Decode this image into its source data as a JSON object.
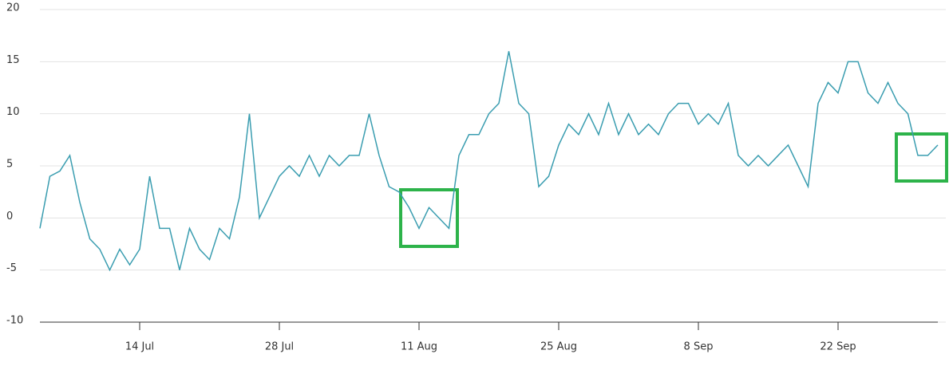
{
  "chart_data": {
    "type": "line",
    "x": [
      "4 Jul",
      "5 Jul",
      "6 Jul",
      "7 Jul",
      "8 Jul",
      "9 Jul",
      "10 Jul",
      "11 Jul",
      "12 Jul",
      "13 Jul",
      "14 Jul",
      "15 Jul",
      "16 Jul",
      "17 Jul",
      "18 Jul",
      "19 Jul",
      "20 Jul",
      "21 Jul",
      "22 Jul",
      "23 Jul",
      "24 Jul",
      "25 Jul",
      "26 Jul",
      "27 Jul",
      "28 Jul",
      "29 Jul",
      "30 Jul",
      "31 Jul",
      "1 Aug",
      "2 Aug",
      "3 Aug",
      "4 Aug",
      "5 Aug",
      "6 Aug",
      "7 Aug",
      "8 Aug",
      "9 Aug",
      "10 Aug",
      "11 Aug",
      "12 Aug",
      "13 Aug",
      "14 Aug",
      "15 Aug",
      "16 Aug",
      "17 Aug",
      "18 Aug",
      "19 Aug",
      "20 Aug",
      "21 Aug",
      "22 Aug",
      "23 Aug",
      "24 Aug",
      "25 Aug",
      "26 Aug",
      "27 Aug",
      "28 Aug",
      "29 Aug",
      "30 Aug",
      "31 Aug",
      "1 Sep",
      "2 Sep",
      "3 Sep",
      "4 Sep",
      "5 Sep",
      "6 Sep",
      "7 Sep",
      "8 Sep",
      "9 Sep",
      "10 Sep",
      "11 Sep",
      "12 Sep",
      "13 Sep",
      "14 Sep",
      "15 Sep",
      "16 Sep",
      "17 Sep",
      "18 Sep",
      "19 Sep",
      "20 Sep",
      "21 Sep",
      "22 Sep",
      "23 Sep",
      "24 Sep",
      "25 Sep",
      "26 Sep",
      "27 Sep",
      "28 Sep",
      "29 Sep",
      "30 Sep",
      "1 Oct",
      "2 Oct"
    ],
    "series": [
      {
        "color": "#3a9db0",
        "values": [
          -1,
          4,
          4.5,
          6,
          1.5,
          -2,
          -3,
          -5,
          -3,
          -4.5,
          -3,
          4,
          -1,
          -1,
          -5,
          -1,
          -3,
          -4,
          -1,
          -2,
          2,
          10,
          0,
          2,
          4,
          5,
          4,
          6,
          4,
          6,
          5,
          6,
          6,
          10,
          6,
          3,
          2.5,
          1,
          -1,
          1,
          0,
          -1,
          6,
          8,
          8,
          10,
          11,
          16,
          11,
          10,
          3,
          4,
          7,
          9,
          8,
          10,
          8,
          11,
          8,
          10,
          8,
          9,
          8,
          10,
          11,
          11,
          9,
          10,
          9,
          11,
          6,
          5,
          6,
          5,
          6,
          7,
          5,
          3,
          11,
          13,
          12,
          15,
          15,
          12,
          11,
          13,
          11,
          10,
          6,
          6,
          7
        ]
      }
    ],
    "xticks": [
      "14 Jul",
      "28 Jul",
      "11 Aug",
      "25 Aug",
      "8 Sep",
      "22 Sep"
    ],
    "ylim": [
      -10,
      20
    ],
    "yticks": [
      -10,
      -5,
      0,
      5,
      10,
      15,
      20
    ],
    "grid": true
  }
}
